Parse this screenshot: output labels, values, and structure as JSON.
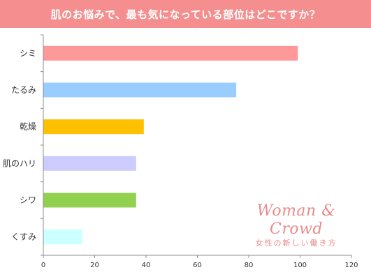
{
  "chart_data": {
    "type": "bar",
    "orientation": "horizontal",
    "title": "肌のお悩みで、最も気になっている部位はどこですか？",
    "categories": [
      "シミ",
      "たるみ",
      "乾燥",
      "肌のハリ",
      "シワ",
      "くすみ"
    ],
    "values": [
      99,
      75,
      39,
      36,
      36,
      15
    ],
    "colors": [
      "#ff9999",
      "#99ccff",
      "#ffc000",
      "#ccccff",
      "#92d050",
      "#ccffff"
    ],
    "xlim": [
      0,
      120
    ],
    "xticks": [
      "0",
      "20",
      "40",
      "60",
      "80",
      "100",
      "120"
    ],
    "grid": false,
    "legend": "none"
  },
  "brand": {
    "name": "Woman & Crowd",
    "tagline": "女性の新しい働き方"
  },
  "style": {
    "title_bg": "#f58f8f",
    "brand_color": "#e98a8a"
  }
}
